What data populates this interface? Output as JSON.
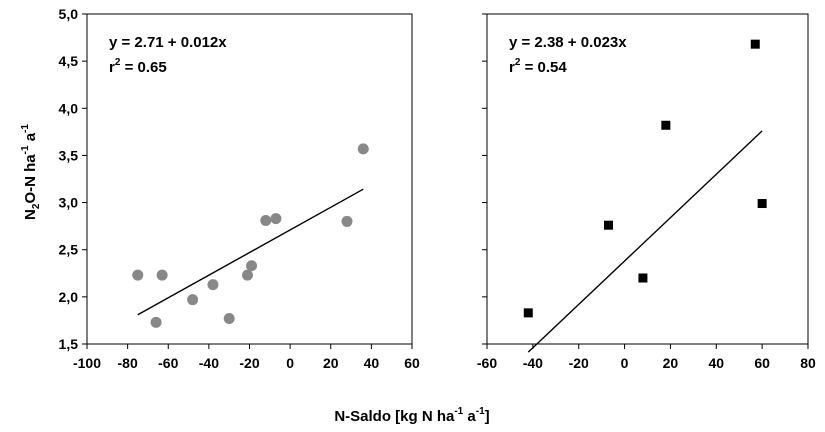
{
  "chart_data": [
    {
      "type": "scatter",
      "panel": "left",
      "equation": "y = 2.71 + 0.012x",
      "r2_label": "r",
      "r2_exp": "2",
      "r2_value": " = 0.65",
      "xlim": [
        -100,
        60
      ],
      "ylim": [
        1.5,
        5.0
      ],
      "x_ticks": [
        -100,
        -80,
        -60,
        -40,
        -20,
        0,
        20,
        40,
        60
      ],
      "x_tick_labels": [
        "-100",
        "-80",
        "-60",
        "-40",
        "-20",
        "0",
        "20",
        "40",
        "60"
      ],
      "y_ticks": [
        1.5,
        2.0,
        2.5,
        3.0,
        3.5,
        4.0,
        4.5,
        5.0
      ],
      "y_tick_labels": [
        "1,5",
        "2,0",
        "2,5",
        "3,0",
        "3,5",
        "4,0",
        "4,5",
        "5,0"
      ],
      "marker": "circle",
      "marker_color": "#888888",
      "points": [
        {
          "x": -75,
          "y": 2.23
        },
        {
          "x": -66,
          "y": 1.73
        },
        {
          "x": -63,
          "y": 2.23
        },
        {
          "x": -48,
          "y": 1.97
        },
        {
          "x": -38,
          "y": 2.13
        },
        {
          "x": -30,
          "y": 1.77
        },
        {
          "x": -21,
          "y": 2.23
        },
        {
          "x": -19,
          "y": 2.33
        },
        {
          "x": -12,
          "y": 2.81
        },
        {
          "x": -7,
          "y": 2.83
        },
        {
          "x": 28,
          "y": 2.8
        },
        {
          "x": 36,
          "y": 3.57
        }
      ],
      "regression": {
        "intercept": 2.71,
        "slope": 0.012,
        "x_range": [
          -75,
          36
        ]
      }
    },
    {
      "type": "scatter",
      "panel": "right",
      "equation": "y = 2.38 + 0.023x",
      "r2_label": "r",
      "r2_exp": "2",
      "r2_value": " = 0.54",
      "xlim": [
        -60,
        80
      ],
      "ylim": [
        1.5,
        5.0
      ],
      "x_ticks": [
        -60,
        -40,
        -20,
        0,
        20,
        40,
        60,
        80
      ],
      "x_tick_labels": [
        "-60",
        "-40",
        "-20",
        "0",
        "20",
        "40",
        "60",
        "80"
      ],
      "y_ticks": [
        1.5,
        2.0,
        2.5,
        3.0,
        3.5,
        4.0,
        4.5,
        5.0
      ],
      "marker": "square",
      "marker_color": "#000000",
      "points": [
        {
          "x": -42,
          "y": 1.83
        },
        {
          "x": -7,
          "y": 2.76
        },
        {
          "x": 8,
          "y": 2.2
        },
        {
          "x": 18,
          "y": 3.82
        },
        {
          "x": 57,
          "y": 4.68
        },
        {
          "x": 60,
          "y": 2.99
        }
      ],
      "regression": {
        "intercept": 2.38,
        "slope": 0.023,
        "x_range": [
          -42,
          60
        ]
      }
    }
  ],
  "axis_labels": {
    "y_main": "N",
    "y_sub": "2",
    "y_mid": "O-N ha",
    "y_sup1": "-1",
    "y_mid2": " a",
    "y_sup2": "-1",
    "x_main": "N-Saldo [kg N ha",
    "x_sup1": "-1",
    "x_mid": " a",
    "x_sup2": "-1",
    "x_end": "]"
  }
}
